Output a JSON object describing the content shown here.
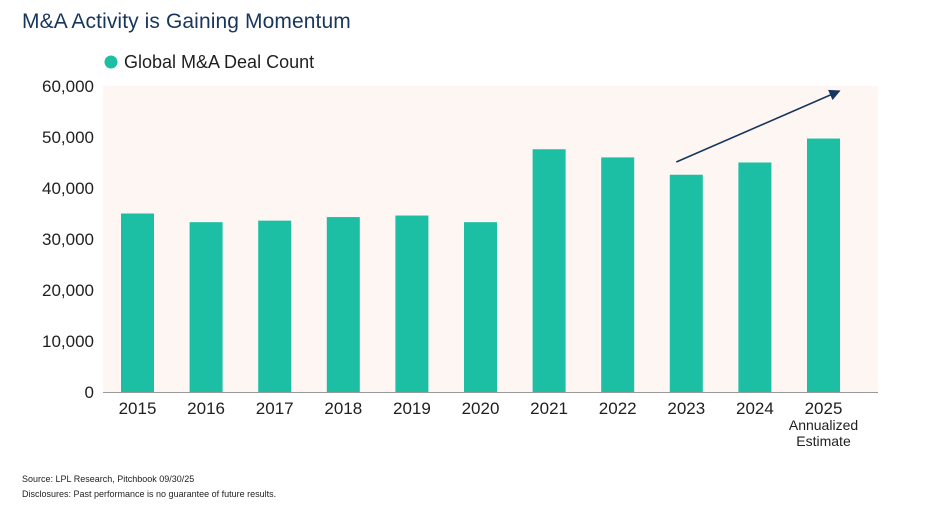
{
  "title": "M&A Activity is Gaining Momentum",
  "colors": {
    "bar": "#1cbfa4",
    "plot_background": "#fdf6f2",
    "arrow": "#17365d",
    "title": "#18365c",
    "axis_line": "#999999"
  },
  "chart_data": {
    "type": "bar",
    "categories": [
      "2015",
      "2016",
      "2017",
      "2018",
      "2019",
      "2020",
      "2021",
      "2022",
      "2023",
      "2024",
      "2025"
    ],
    "category_sublabels": [
      "",
      "",
      "",
      "",
      "",
      "",
      "",
      "",
      "",
      "",
      "Annualized Estimate"
    ],
    "series": [
      {
        "name": "Global M&A Deal Count",
        "values": [
          35000,
          33300,
          33600,
          34300,
          34600,
          33300,
          47600,
          46000,
          42600,
          45000,
          49700
        ]
      }
    ],
    "ylim": [
      0,
      60000
    ],
    "yticks": [
      0,
      10000,
      20000,
      30000,
      40000,
      50000,
      60000
    ],
    "ytick_labels": [
      "0",
      "10,000",
      "20,000",
      "30,000",
      "40,000",
      "50,000",
      "60,000"
    ],
    "xlabel": "",
    "ylabel": "",
    "grid": false,
    "legend": "top-left",
    "annotation": "upward trend arrow from 2023 to 2025"
  },
  "footer": {
    "source": "Source: LPL Research, Pitchbook 09/30/25",
    "disclosure": "Disclosures: Past performance is no guarantee of future results."
  }
}
